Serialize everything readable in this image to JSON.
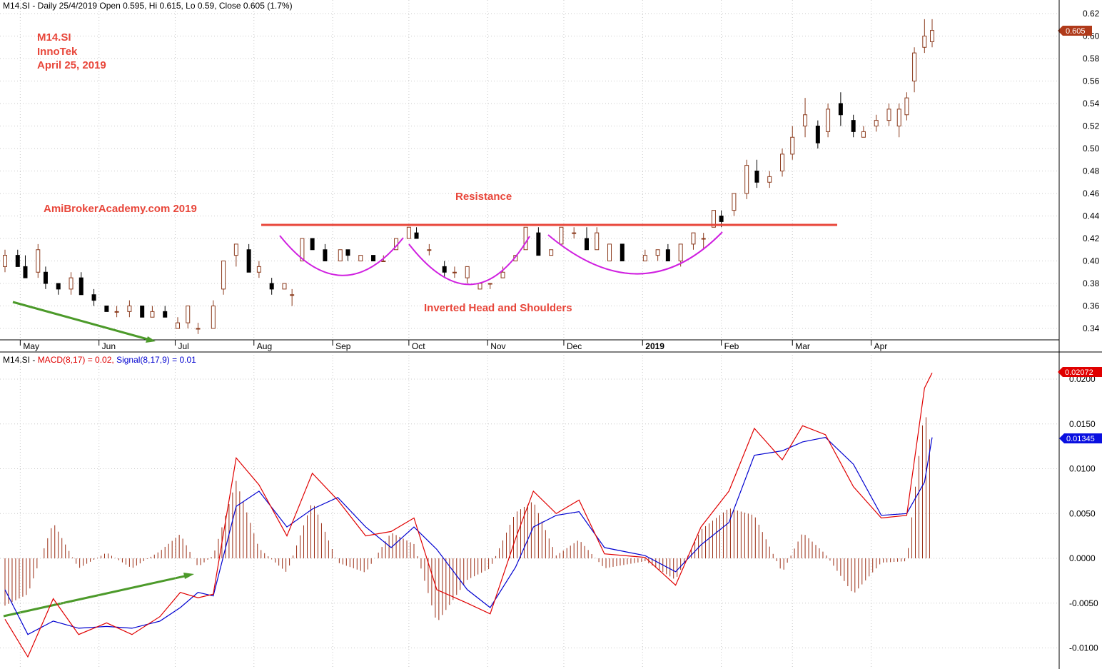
{
  "header": {
    "price": "M14.SI - Daily 25/4/2019 Open 0.595, Hi 0.615, Lo 0.59, Close 0.605 (1.7%)",
    "macd_prefix": "M14.SI - ",
    "macd_label": "MACD(8,17) = 0.02, ",
    "signal_label": "Signal(8,17,9) = 0.01"
  },
  "annotations": {
    "symbol": "M14.SI",
    "company": "InnoTek",
    "date": "April 25, 2019",
    "site": "AmiBrokerAcademy.com  2019",
    "resistance": "Resistance",
    "pattern": "Inverted Head and Shoulders"
  },
  "tags": {
    "price": "0.605",
    "macd": "0.02072",
    "signal": "0.01345"
  },
  "colors": {
    "up_candle": "#8b3a1c",
    "down_candle": "#000000",
    "macd_line": "#e00000",
    "signal_line": "#0000d0",
    "histogram": "#9b2d14",
    "resistance": "#e8463a",
    "pattern_arcs": "#d020e0",
    "trend_arrows": "#4c9a2a",
    "annotation_text": "#e8463a",
    "grid": "#c8c8c8"
  },
  "chart_data": [
    {
      "type": "candlestick",
      "title": "M14.SI - Daily 25/4/2019 Open 0.595, Hi 0.615, Lo 0.59, Close 0.605 (1.7%)",
      "x_months": [
        "May",
        "Jun",
        "Jul",
        "Aug",
        "Sep",
        "Oct",
        "Nov",
        "Dec",
        "2019",
        "Feb",
        "Mar",
        "Apr"
      ],
      "x_range": [
        "2018-04-25",
        "2019-04-25"
      ],
      "ylim": [
        0.33,
        0.62
      ],
      "y_ticks": [
        "0.34",
        "0.36",
        "0.38",
        "0.40",
        "0.42",
        "0.44",
        "0.46",
        "0.48",
        "0.50",
        "0.52",
        "0.54",
        "0.56",
        "0.58",
        "0.60",
        "0.62"
      ],
      "grid": true,
      "resistance_level": 0.433,
      "last_close": 0.605,
      "candles": [
        [
          "2018-04-25",
          0.395,
          0.41,
          0.39,
          0.405
        ],
        [
          "2018-04-30",
          0.405,
          0.41,
          0.395,
          0.395
        ],
        [
          "2018-05-03",
          0.395,
          0.405,
          0.385,
          0.385
        ],
        [
          "2018-05-08",
          0.39,
          0.415,
          0.385,
          0.41
        ],
        [
          "2018-05-11",
          0.39,
          0.395,
          0.375,
          0.38
        ],
        [
          "2018-05-16",
          0.38,
          0.38,
          0.37,
          0.375
        ],
        [
          "2018-05-21",
          0.375,
          0.39,
          0.37,
          0.385
        ],
        [
          "2018-05-25",
          0.385,
          0.39,
          0.37,
          0.37
        ],
        [
          "2018-05-30",
          0.37,
          0.375,
          0.36,
          0.365
        ],
        [
          "2018-06-04",
          0.36,
          0.36,
          0.355,
          0.355
        ],
        [
          "2018-06-08",
          0.355,
          0.36,
          0.35,
          0.355
        ],
        [
          "2018-06-13",
          0.355,
          0.365,
          0.35,
          0.36
        ],
        [
          "2018-06-18",
          0.36,
          0.36,
          0.35,
          0.35
        ],
        [
          "2018-06-22",
          0.35,
          0.36,
          0.35,
          0.355
        ],
        [
          "2018-06-27",
          0.355,
          0.36,
          0.35,
          0.35
        ],
        [
          "2018-07-02",
          0.34,
          0.35,
          0.34,
          0.345
        ],
        [
          "2018-07-06",
          0.345,
          0.36,
          0.34,
          0.36
        ],
        [
          "2018-07-10",
          0.34,
          0.345,
          0.335,
          0.34
        ],
        [
          "2018-07-16",
          0.34,
          0.365,
          0.34,
          0.36
        ],
        [
          "2018-07-20",
          0.375,
          0.4,
          0.37,
          0.4
        ],
        [
          "2018-07-25",
          0.405,
          0.415,
          0.395,
          0.415
        ],
        [
          "2018-07-30",
          0.41,
          0.415,
          0.39,
          0.39
        ],
        [
          "2018-08-03",
          0.39,
          0.4,
          0.385,
          0.395
        ],
        [
          "2018-08-08",
          0.38,
          0.385,
          0.37,
          0.375
        ],
        [
          "2018-08-13",
          0.375,
          0.38,
          0.375,
          0.38
        ],
        [
          "2018-08-16",
          0.37,
          0.375,
          0.36,
          0.37
        ],
        [
          "2018-08-20",
          0.4,
          0.42,
          0.4,
          0.42
        ],
        [
          "2018-08-24",
          0.42,
          0.42,
          0.41,
          0.41
        ],
        [
          "2018-08-29",
          0.41,
          0.415,
          0.4,
          0.4
        ],
        [
          "2018-09-04",
          0.4,
          0.41,
          0.4,
          0.41
        ],
        [
          "2018-09-07",
          0.41,
          0.41,
          0.4,
          0.405
        ],
        [
          "2018-09-12",
          0.4,
          0.405,
          0.4,
          0.405
        ],
        [
          "2018-09-17",
          0.405,
          0.405,
          0.4,
          0.4
        ],
        [
          "2018-09-21",
          0.4,
          0.405,
          0.4,
          0.4
        ],
        [
          "2018-09-26",
          0.41,
          0.42,
          0.41,
          0.42
        ],
        [
          "2018-10-01",
          0.42,
          0.43,
          0.42,
          0.43
        ],
        [
          "2018-10-04",
          0.425,
          0.43,
          0.42,
          0.42
        ],
        [
          "2018-10-09",
          0.41,
          0.415,
          0.405,
          0.41
        ],
        [
          "2018-10-15",
          0.395,
          0.4,
          0.385,
          0.39
        ],
        [
          "2018-10-19",
          0.39,
          0.395,
          0.385,
          0.39
        ],
        [
          "2018-10-24",
          0.385,
          0.395,
          0.38,
          0.395
        ],
        [
          "2018-10-29",
          0.375,
          0.38,
          0.375,
          0.38
        ],
        [
          "2018-11-02",
          0.38,
          0.38,
          0.375,
          0.38
        ],
        [
          "2018-11-07",
          0.385,
          0.395,
          0.385,
          0.39
        ],
        [
          "2018-11-12",
          0.4,
          0.405,
          0.4,
          0.405
        ],
        [
          "2018-11-16",
          0.41,
          0.43,
          0.41,
          0.43
        ],
        [
          "2018-11-21",
          0.425,
          0.43,
          0.405,
          0.405
        ],
        [
          "2018-11-26",
          0.405,
          0.41,
          0.405,
          0.41
        ],
        [
          "2018-11-30",
          0.415,
          0.43,
          0.415,
          0.43
        ],
        [
          "2018-12-05",
          0.425,
          0.43,
          0.42,
          0.425
        ],
        [
          "2018-12-10",
          0.42,
          0.43,
          0.41,
          0.41
        ],
        [
          "2018-12-14",
          0.41,
          0.43,
          0.41,
          0.425
        ],
        [
          "2018-12-19",
          0.4,
          0.415,
          0.4,
          0.415
        ],
        [
          "2018-12-24",
          0.415,
          0.415,
          0.4,
          0.4
        ],
        [
          "2019-01-02",
          0.4,
          0.41,
          0.4,
          0.405
        ],
        [
          "2019-01-07",
          0.405,
          0.41,
          0.4,
          0.41
        ],
        [
          "2019-01-11",
          0.41,
          0.415,
          0.4,
          0.4
        ],
        [
          "2019-01-16",
          0.4,
          0.415,
          0.395,
          0.415
        ],
        [
          "2019-01-21",
          0.415,
          0.425,
          0.41,
          0.425
        ],
        [
          "2019-01-25",
          0.42,
          0.425,
          0.41,
          0.42
        ],
        [
          "2019-01-29",
          0.43,
          0.445,
          0.43,
          0.445
        ],
        [
          "2019-02-01",
          0.44,
          0.445,
          0.43,
          0.435
        ],
        [
          "2019-02-06",
          0.445,
          0.46,
          0.44,
          0.46
        ],
        [
          "2019-02-11",
          0.46,
          0.49,
          0.455,
          0.485
        ],
        [
          "2019-02-15",
          0.48,
          0.49,
          0.465,
          0.47
        ],
        [
          "2019-02-20",
          0.47,
          0.48,
          0.465,
          0.475
        ],
        [
          "2019-02-25",
          0.48,
          0.5,
          0.475,
          0.495
        ],
        [
          "2019-03-01",
          0.495,
          0.52,
          0.49,
          0.51
        ],
        [
          "2019-03-06",
          0.52,
          0.545,
          0.51,
          0.53
        ],
        [
          "2019-03-11",
          0.52,
          0.525,
          0.5,
          0.505
        ],
        [
          "2019-03-15",
          0.515,
          0.54,
          0.51,
          0.535
        ],
        [
          "2019-03-20",
          0.54,
          0.55,
          0.52,
          0.53
        ],
        [
          "2019-03-25",
          0.525,
          0.53,
          0.51,
          0.515
        ],
        [
          "2019-03-29",
          0.51,
          0.52,
          0.51,
          0.515
        ],
        [
          "2019-04-03",
          0.52,
          0.53,
          0.515,
          0.525
        ],
        [
          "2019-04-08",
          0.525,
          0.54,
          0.52,
          0.535
        ],
        [
          "2019-04-12",
          0.52,
          0.54,
          0.51,
          0.535
        ],
        [
          "2019-04-15",
          0.53,
          0.55,
          0.525,
          0.545
        ],
        [
          "2019-04-18",
          0.56,
          0.59,
          0.55,
          0.585
        ],
        [
          "2019-04-22",
          0.59,
          0.615,
          0.585,
          0.6
        ],
        [
          "2019-04-25",
          0.595,
          0.615,
          0.59,
          0.605
        ]
      ]
    },
    {
      "type": "line",
      "title": "M14.SI - MACD(8,17) = 0.02, Signal(8,17,9) = 0.01",
      "x_range": [
        "2018-04-25",
        "2019-04-25"
      ],
      "ylim": [
        -0.0115,
        0.022
      ],
      "y_ticks": [
        "0.0200",
        "0.0150",
        "0.0100",
        "0.0050",
        "0.0000",
        "-0.0050",
        "-0.0100"
      ],
      "grid": true,
      "series": [
        {
          "name": "MACD(8,17)",
          "points": [
            [
              "2018-04-25",
              -0.0068
            ],
            [
              "2018-05-04",
              -0.011
            ],
            [
              "2018-05-14",
              -0.0045
            ],
            [
              "2018-05-24",
              -0.0085
            ],
            [
              "2018-06-04",
              -0.0072
            ],
            [
              "2018-06-14",
              -0.0085
            ],
            [
              "2018-06-25",
              -0.0065
            ],
            [
              "2018-07-03",
              -0.0038
            ],
            [
              "2018-07-10",
              -0.0044
            ],
            [
              "2018-07-16",
              -0.004
            ],
            [
              "2018-07-25",
              0.0112
            ],
            [
              "2018-08-03",
              0.0082
            ],
            [
              "2018-08-14",
              0.0025
            ],
            [
              "2018-08-24",
              0.0095
            ],
            [
              "2018-09-03",
              0.0065
            ],
            [
              "2018-09-14",
              0.0025
            ],
            [
              "2018-09-24",
              0.003
            ],
            [
              "2018-10-03",
              0.0045
            ],
            [
              "2018-10-12",
              -0.0035
            ],
            [
              "2018-10-24",
              -0.005
            ],
            [
              "2018-11-02",
              -0.0062
            ],
            [
              "2018-11-12",
              0.0022
            ],
            [
              "2018-11-19",
              0.0075
            ],
            [
              "2018-11-28",
              0.005
            ],
            [
              "2018-12-07",
              0.0065
            ],
            [
              "2018-12-17",
              0.0005
            ],
            [
              "2019-01-02",
              0.0001
            ],
            [
              "2019-01-14",
              -0.003
            ],
            [
              "2019-01-24",
              0.0035
            ],
            [
              "2019-02-04",
              0.0075
            ],
            [
              "2019-02-14",
              0.0145
            ],
            [
              "2019-02-25",
              0.011
            ],
            [
              "2019-03-05",
              0.0148
            ],
            [
              "2019-03-14",
              0.0138
            ],
            [
              "2019-03-25",
              0.008
            ],
            [
              "2019-04-05",
              0.0045
            ],
            [
              "2019-04-15",
              0.0048
            ],
            [
              "2019-04-22",
              0.019
            ],
            [
              "2019-04-25",
              0.0207
            ]
          ]
        },
        {
          "name": "Signal(8,17,9)",
          "points": [
            [
              "2018-04-25",
              -0.0035
            ],
            [
              "2018-05-04",
              -0.0085
            ],
            [
              "2018-05-14",
              -0.007
            ],
            [
              "2018-05-24",
              -0.0078
            ],
            [
              "2018-06-04",
              -0.0076
            ],
            [
              "2018-06-14",
              -0.0078
            ],
            [
              "2018-06-25",
              -0.007
            ],
            [
              "2018-07-03",
              -0.0055
            ],
            [
              "2018-07-10",
              -0.0038
            ],
            [
              "2018-07-16",
              -0.0042
            ],
            [
              "2018-07-25",
              0.0058
            ],
            [
              "2018-08-03",
              0.0075
            ],
            [
              "2018-08-14",
              0.0035
            ],
            [
              "2018-08-24",
              0.0055
            ],
            [
              "2018-09-03",
              0.0068
            ],
            [
              "2018-09-14",
              0.0035
            ],
            [
              "2018-09-24",
              0.0012
            ],
            [
              "2018-10-03",
              0.0035
            ],
            [
              "2018-10-12",
              0.001
            ],
            [
              "2018-10-24",
              -0.0035
            ],
            [
              "2018-11-02",
              -0.0055
            ],
            [
              "2018-11-12",
              -0.001
            ],
            [
              "2018-11-19",
              0.0035
            ],
            [
              "2018-11-28",
              0.0048
            ],
            [
              "2018-12-07",
              0.0052
            ],
            [
              "2018-12-17",
              0.0012
            ],
            [
              "2019-01-02",
              0.0003
            ],
            [
              "2019-01-14",
              -0.0015
            ],
            [
              "2019-01-24",
              0.0015
            ],
            [
              "2019-02-04",
              0.004
            ],
            [
              "2019-02-14",
              0.0115
            ],
            [
              "2019-02-25",
              0.012
            ],
            [
              "2019-03-05",
              0.013
            ],
            [
              "2019-03-14",
              0.0135
            ],
            [
              "2019-03-25",
              0.0105
            ],
            [
              "2019-04-05",
              0.0048
            ],
            [
              "2019-04-15",
              0.005
            ],
            [
              "2019-04-22",
              0.0085
            ],
            [
              "2019-04-25",
              0.0135
            ]
          ]
        }
      ],
      "histogram": "MACD minus Signal"
    }
  ]
}
